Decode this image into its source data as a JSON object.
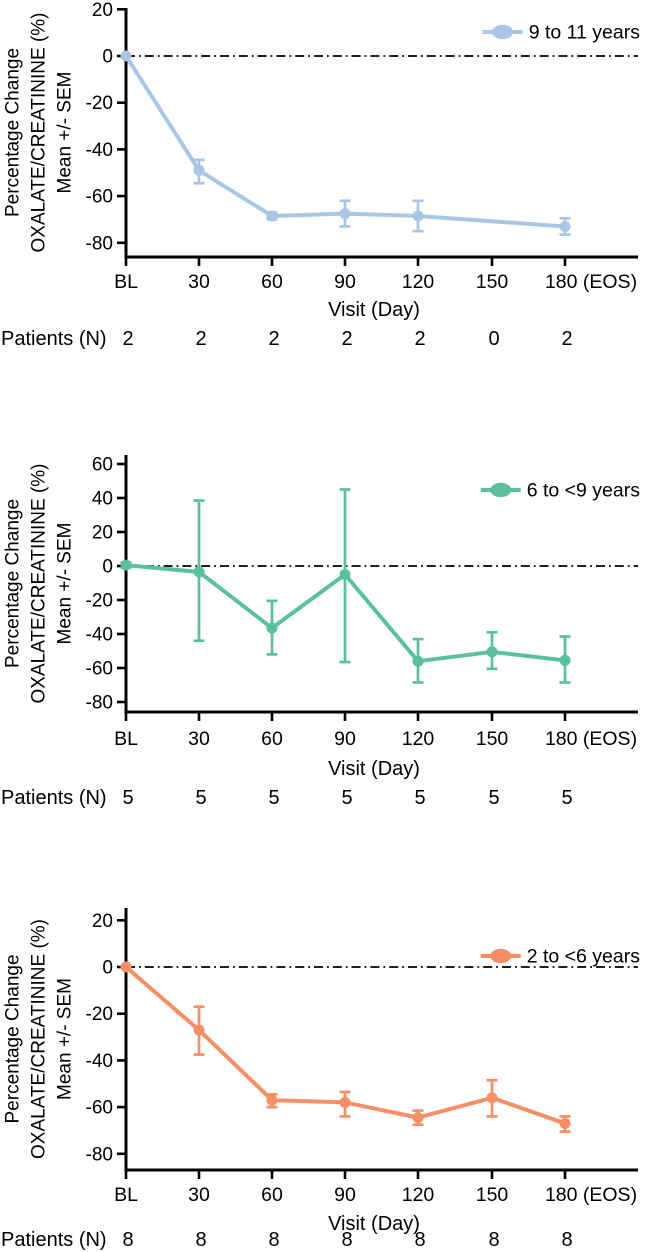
{
  "figure": {
    "description": "Three stacked line charts of percentage change in urinary oxalate/creatinine ratio by age group"
  },
  "chart_data": [
    {
      "type": "line",
      "series": [
        {
          "name": "9 to 11 years",
          "color": "#aac6e6"
        }
      ],
      "title": "",
      "xlabel": "Visit (Day)",
      "ylabel_lines": [
        "Percentage Change",
        "OXALATE/CREATININE (%)",
        "Mean +/- SEM"
      ],
      "categories": [
        "BL",
        "30",
        "60",
        "90",
        "120",
        "150",
        "180 (EOS)"
      ],
      "mean": [
        0,
        -49,
        -68.5,
        -67.5,
        -68.5,
        null,
        -73
      ],
      "sem_low": [
        0,
        -54.5,
        -70,
        -73,
        -75,
        null,
        -76.5
      ],
      "sem_high": [
        0,
        -44.5,
        -67,
        -62,
        -62,
        null,
        -69.5
      ],
      "yticks": [
        20,
        0,
        -20,
        -40,
        -60,
        -80
      ],
      "ylim": [
        -86,
        21
      ],
      "zero_reference_line": "dash-dot",
      "legend_position": "top-right",
      "grid": "off",
      "patients_row_label": "Patients (N)",
      "patients_n": [
        "2",
        "2",
        "2",
        "2",
        "2",
        "0",
        "2"
      ]
    },
    {
      "type": "line",
      "series": [
        {
          "name": "6 to <9 years",
          "color": "#5bc0a0"
        }
      ],
      "title": "",
      "xlabel": "Visit (Day)",
      "ylabel_lines": [
        "Percentage Change",
        "OXALATE/CREATININE (%)",
        "Mean +/- SEM"
      ],
      "categories": [
        "BL",
        "30",
        "60",
        "90",
        "120",
        "150",
        "180 (EOS)"
      ],
      "mean": [
        0.5,
        -3.5,
        -36.5,
        -5,
        -56,
        -50.5,
        -55.5
      ],
      "sem_low": [
        -1,
        -44,
        -52,
        -56.5,
        -68.5,
        -60.5,
        -68.5
      ],
      "sem_high": [
        2,
        38.5,
        -20.5,
        45,
        -43,
        -39,
        -41.5
      ],
      "yticks": [
        60,
        40,
        20,
        0,
        -20,
        -40,
        -60,
        -80
      ],
      "ylim": [
        -86,
        66
      ],
      "zero_reference_line": "dash-dot",
      "legend_position": "top-right",
      "grid": "off",
      "patients_row_label": "Patients (N)",
      "patients_n": [
        "5",
        "5",
        "5",
        "5",
        "5",
        "5",
        "5"
      ]
    },
    {
      "type": "line",
      "series": [
        {
          "name": "2 to <6 years",
          "color": "#f68e66"
        }
      ],
      "title": "",
      "xlabel": "Visit (Day)",
      "ylabel_lines": [
        "Percentage Change",
        "OXALATE/CREATININE (%)",
        "Mean +/- SEM"
      ],
      "categories": [
        "BL",
        "30",
        "60",
        "90",
        "120",
        "150",
        "180 (EOS)"
      ],
      "mean": [
        0,
        -27,
        -57,
        -58,
        -64.5,
        -56,
        -67
      ],
      "sem_low": [
        0,
        -37.5,
        -60,
        -64,
        -67.5,
        -64,
        -70.5
      ],
      "sem_high": [
        0,
        -17,
        -54.5,
        -53.5,
        -61.5,
        -48.5,
        -64
      ],
      "yticks": [
        20,
        0,
        -20,
        -40,
        -60,
        -80
      ],
      "ylim": [
        -86,
        26
      ],
      "zero_reference_line": "dash-dot",
      "legend_position": "top-right",
      "grid": "off",
      "patients_row_label": "Patients (N)",
      "patients_n": [
        "8",
        "8",
        "8",
        "8",
        "8",
        "8",
        "8"
      ]
    }
  ]
}
